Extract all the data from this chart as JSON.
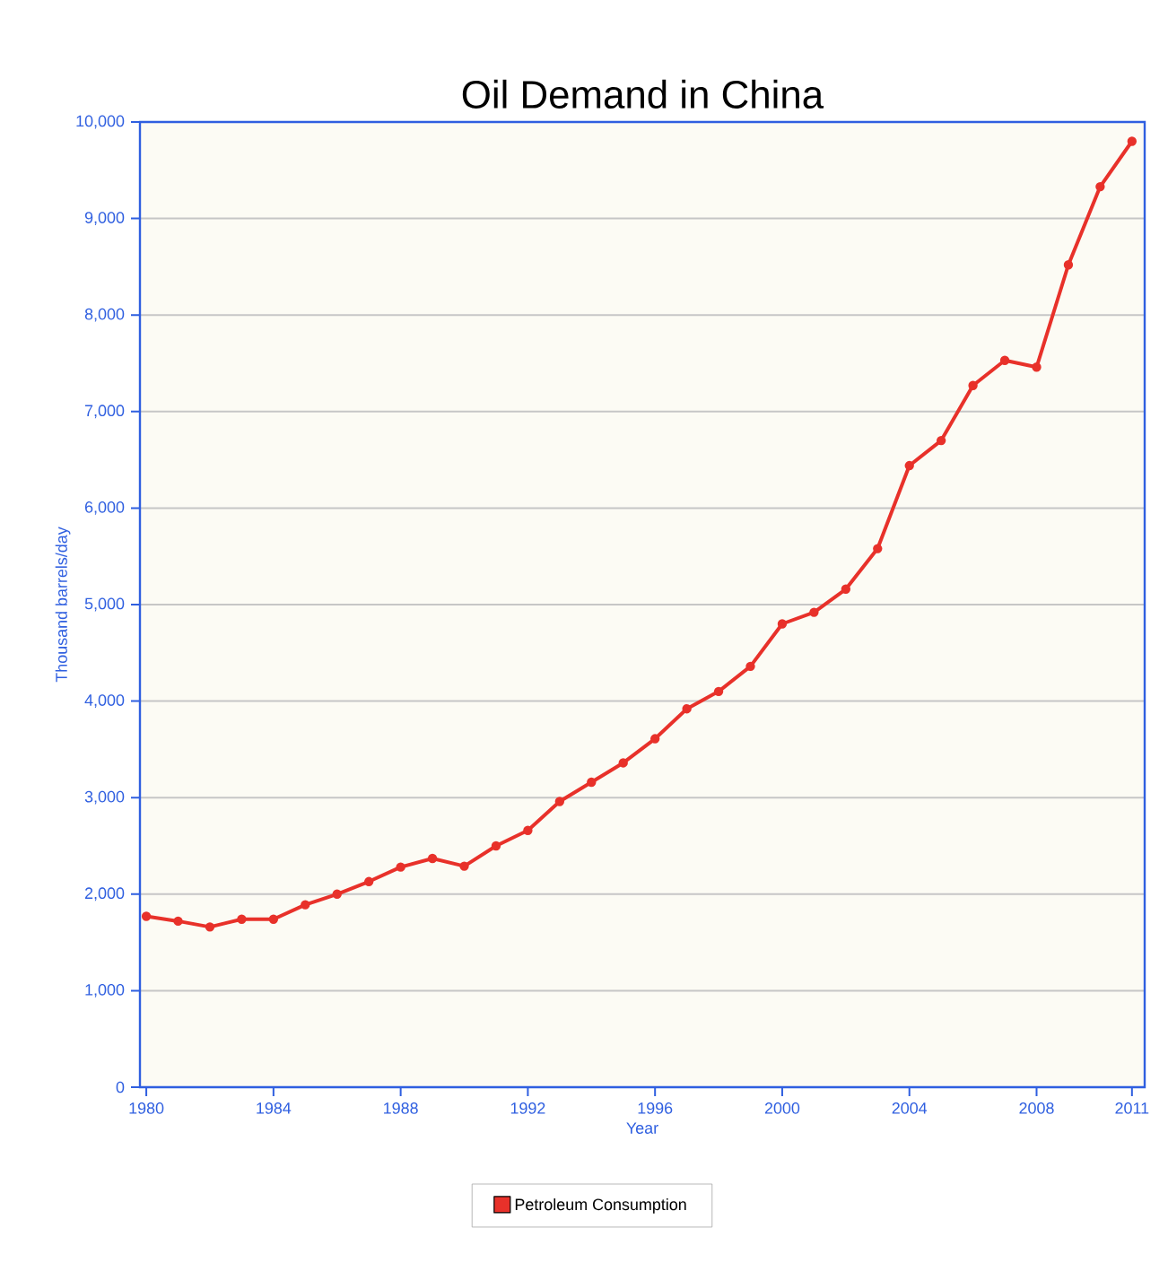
{
  "chart_data": {
    "type": "line",
    "title": "Oil Demand in China",
    "xlabel": "Year",
    "ylabel": "Thousand barrels/day",
    "x": [
      1980,
      1981,
      1982,
      1983,
      1984,
      1985,
      1986,
      1987,
      1988,
      1989,
      1990,
      1991,
      1992,
      1993,
      1994,
      1995,
      1996,
      1997,
      1998,
      1999,
      2000,
      2001,
      2002,
      2003,
      2004,
      2005,
      2006,
      2007,
      2008,
      2009,
      2010,
      2011
    ],
    "series": [
      {
        "name": "Petroleum Consumption",
        "color": "#e8312a",
        "values": [
          1770,
          1720,
          1660,
          1740,
          1740,
          1890,
          2000,
          2130,
          2280,
          2370,
          2290,
          2500,
          2660,
          2960,
          3160,
          3360,
          3610,
          3920,
          4100,
          4360,
          4800,
          4920,
          5160,
          5580,
          6440,
          6700,
          7270,
          7530,
          7460,
          8520,
          9330,
          9800
        ]
      }
    ],
    "xlim": [
      1979.8,
      2011.4
    ],
    "xticks": [
      1980,
      1984,
      1988,
      1992,
      1996,
      2000,
      2004,
      2008,
      2011
    ],
    "ylim": [
      0,
      10000
    ],
    "yticks": [
      {
        "value": 0,
        "label": "0"
      },
      {
        "value": 1000,
        "label": "1,000"
      },
      {
        "value": 2000,
        "label": "2,000"
      },
      {
        "value": 3000,
        "label": "3,000"
      },
      {
        "value": 4000,
        "label": "4,000"
      },
      {
        "value": 5000,
        "label": "5,000"
      },
      {
        "value": 6000,
        "label": "6,000"
      },
      {
        "value": 7000,
        "label": "7,000"
      },
      {
        "value": 8000,
        "label": "8,000"
      },
      {
        "value": 9000,
        "label": "9,000"
      },
      {
        "value": 10000,
        "label": "10,000"
      }
    ],
    "grid": "y",
    "legend": "bottom",
    "marker": "circle",
    "line_style": "solid"
  }
}
